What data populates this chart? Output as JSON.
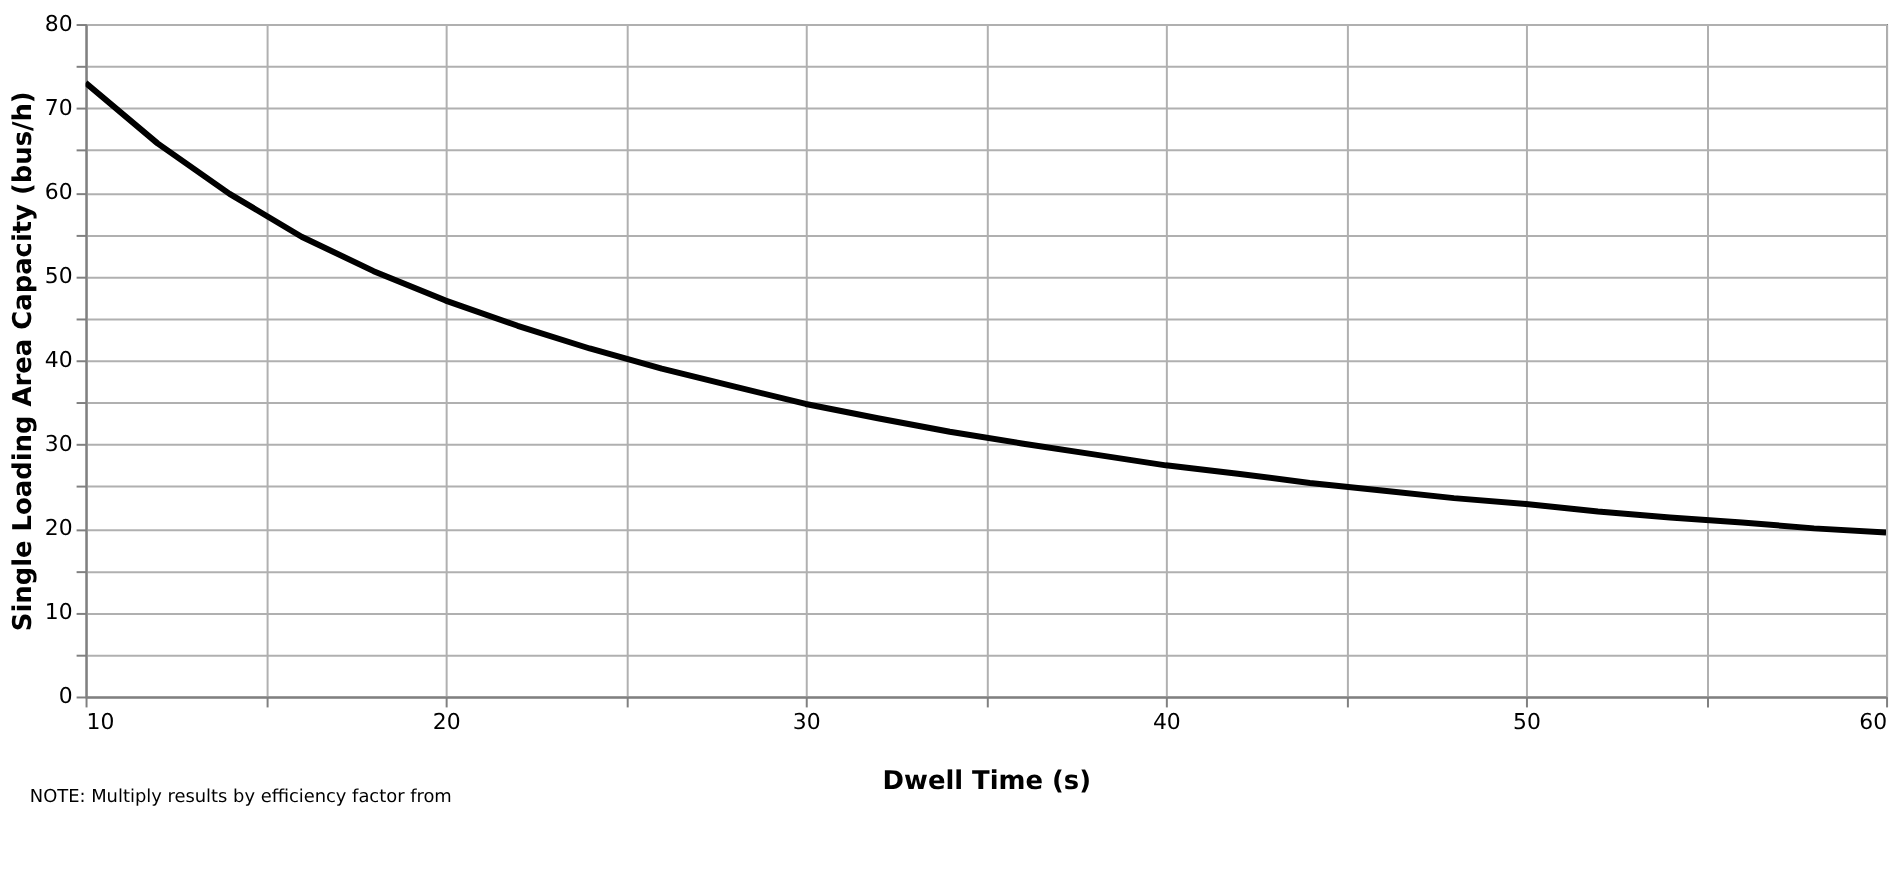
{
  "chart_data": {
    "type": "line",
    "xlabel": "Dwell Time (s)",
    "ylabel": "Single Loading Area Capacity (bus/h)",
    "x": [
      10,
      12,
      14,
      16,
      18,
      20,
      22,
      24,
      26,
      28,
      30,
      32,
      34,
      36,
      38,
      40,
      42,
      44,
      46,
      48,
      50,
      52,
      54,
      56,
      58,
      60
    ],
    "series": [
      {
        "color": "#000000",
        "values": [
          73,
          65.8,
          59.8,
          54.7,
          50.6,
          47.1,
          44.1,
          41.4,
          39,
          36.9,
          34.8,
          33.1,
          31.5,
          30.1,
          28.8,
          27.5,
          26.5,
          25.4,
          24.5,
          23.6,
          22.9,
          22.0,
          21.3,
          20.7,
          20.0,
          19.5
        ]
      }
    ],
    "xlim": [
      10,
      60
    ],
    "ylim": [
      0,
      80
    ],
    "xticks": [
      10,
      {
        "value": 15,
        "label": null
      },
      20,
      {
        "value": 25,
        "label": null
      },
      30,
      {
        "value": 35,
        "label": null
      },
      40,
      {
        "value": 45,
        "label": null
      },
      50,
      {
        "value": 55,
        "label": null
      },
      60
    ],
    "yticks": [
      0,
      {
        "value": 5,
        "label": null
      },
      10,
      {
        "value": 15,
        "label": null
      },
      20,
      {
        "value": 25,
        "label": null
      },
      30,
      {
        "value": 35,
        "label": null
      },
      40,
      {
        "value": 45,
        "label": null
      },
      50,
      {
        "value": 55,
        "label": null
      },
      60,
      {
        "value": 65,
        "label": null
      },
      70,
      {
        "value": 75,
        "label": null
      },
      80
    ],
    "grid": true,
    "marker": "none",
    "line_style": "solid",
    "annotations": [
      "NOTE: Multiply results by efficiency factor from"
    ]
  }
}
